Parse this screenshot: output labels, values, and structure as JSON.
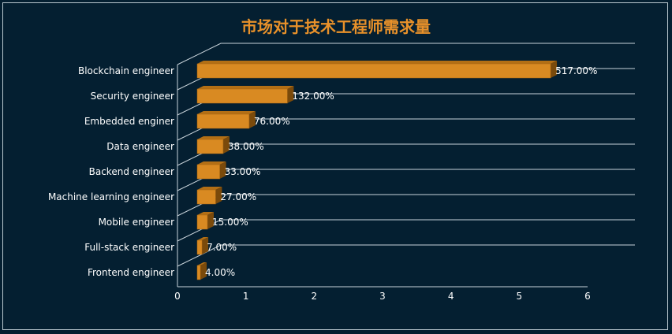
{
  "chart_data": {
    "type": "bar",
    "orientation": "horizontal",
    "style": "3d",
    "title": "市场对于技术工程师需求量",
    "categories": [
      "Frontend engineer",
      "Full-stack engineer",
      "Mobile engineer",
      "Machine learning engineer",
      "Backend engineer",
      "Data engineer",
      "Embedded enginer",
      "Security engineer",
      "Blockchain engineer"
    ],
    "values": [
      0.04,
      0.07,
      0.15,
      0.27,
      0.33,
      0.38,
      0.76,
      1.32,
      5.17
    ],
    "value_labels": [
      "4.00%",
      "7.00%",
      "15.00%",
      "27.00%",
      "33.00%",
      "38.00%",
      "76.00%",
      "132.00%",
      "517.00%"
    ],
    "xticks": [
      "0",
      "1",
      "2",
      "3",
      "4",
      "5",
      "6"
    ],
    "xlim": [
      0,
      6
    ],
    "grid": true,
    "legend": false,
    "colors": {
      "background": "#041f31",
      "bar_front": "#d98a22",
      "bar_top": "#b36f15",
      "bar_side": "#7a4a0b",
      "title": "#e8912a",
      "grid": "#c8d3da",
      "text": "#ffffff"
    }
  }
}
